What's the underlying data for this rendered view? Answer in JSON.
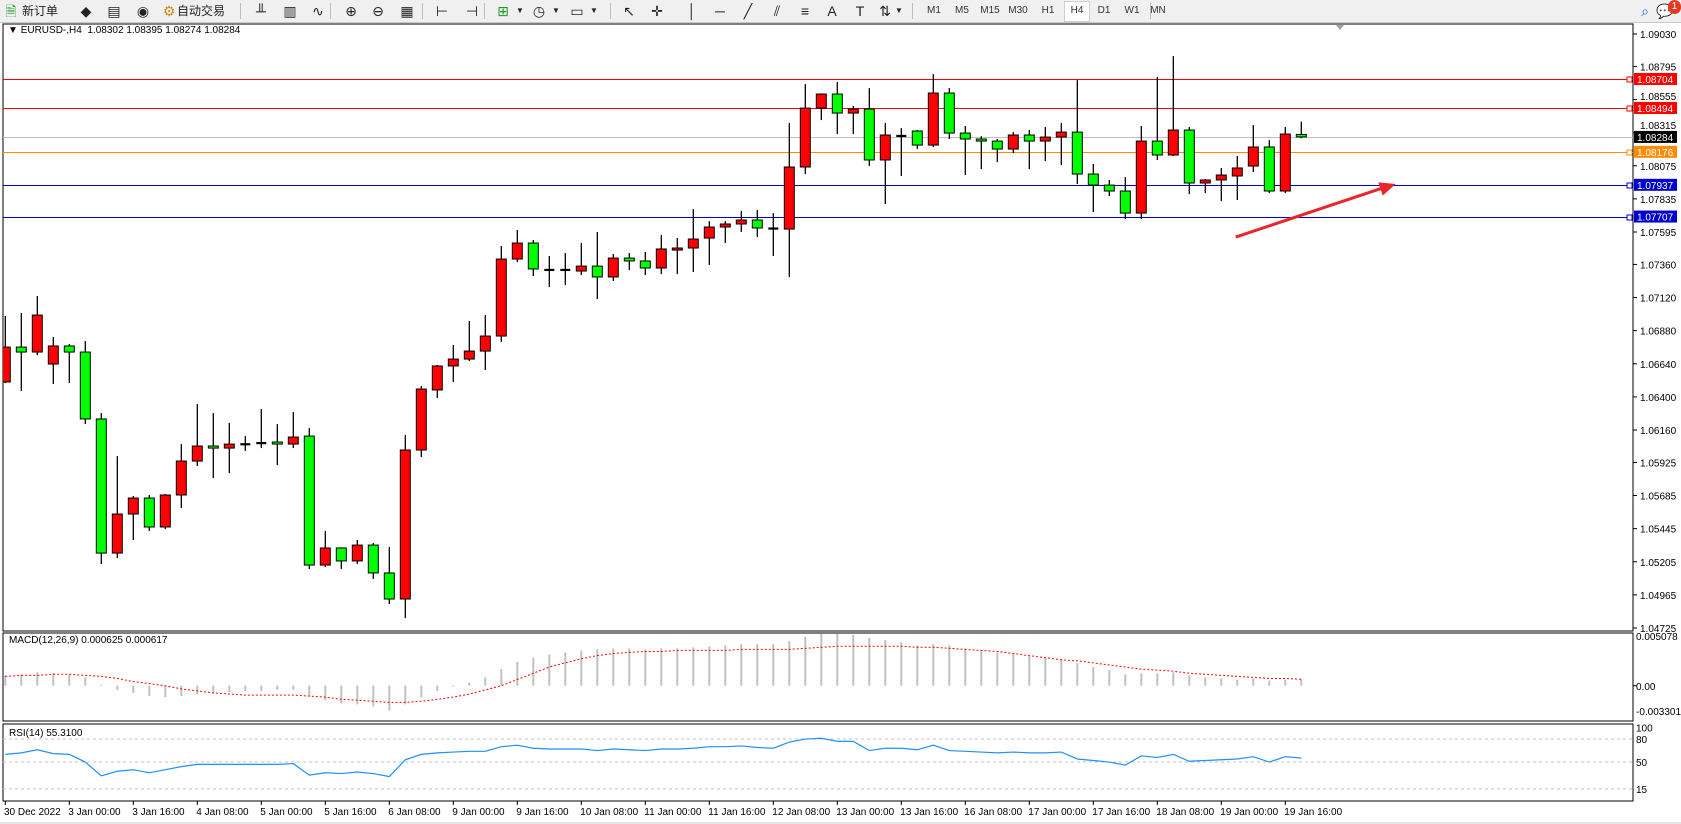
{
  "toolbar": {
    "new_order_label": "新订单",
    "auto_trade_label": "自动交易",
    "timeframes": [
      "M1",
      "M5",
      "M15",
      "M30",
      "H1",
      "H4",
      "D1",
      "W1",
      "MN"
    ],
    "active_timeframe": "H4",
    "notification_count": "1",
    "icons": [
      "new-order-icon",
      "metaeditor-icon",
      "navigator-icon",
      "signals-icon",
      "auto-trading-icon",
      "bar-chart-icon",
      "candlestick-chart-icon",
      "line-chart-icon",
      "zoom-in-icon",
      "zoom-out-icon",
      "tile-windows-icon",
      "autoscroll-icon",
      "chart-shift-icon",
      "indicators-icon",
      "periods-clock-icon",
      "templates-icon",
      "cursor-icon",
      "crosshair-icon",
      "vertical-line-icon",
      "horizontal-line-icon",
      "trendline-icon",
      "equidistant-channel-icon",
      "fibonacci-icon",
      "text-icon",
      "text-label-icon",
      "arrows-icon",
      "search-icon",
      "notification-icon"
    ]
  },
  "chart": {
    "symbol_timeframe": "EURUSD-,H4",
    "header_open": "1.08302",
    "header_high": "1.08395",
    "header_low": "1.08274",
    "header_close": "1.08284",
    "price_axis_labels": [
      "1.09030",
      "1.08795",
      "1.08555",
      "1.08315",
      "1.08075",
      "1.07835",
      "1.07595",
      "1.07360",
      "1.07120",
      "1.06880",
      "1.06640",
      "1.06400",
      "1.06160",
      "1.05925",
      "1.05685",
      "1.05445",
      "1.05205",
      "1.04965",
      "1.04725"
    ],
    "horizontal_lines": [
      {
        "price": "1.08704",
        "color": "#ff0000"
      },
      {
        "price": "1.08494",
        "color": "#ff0000"
      },
      {
        "price": "1.08284",
        "color": "#000000",
        "line_color": "#c0c0c0",
        "kind": "bid"
      },
      {
        "price": "1.08176",
        "color": "#ff8c00"
      },
      {
        "price": "1.07937",
        "color": "#0000cd"
      },
      {
        "price": "1.07707",
        "color": "#0000cd"
      }
    ],
    "time_labels": [
      "30 Dec 2022",
      "3 Jan 00:00",
      "3 Jan 16:00",
      "4 Jan 08:00",
      "5 Jan 00:00",
      "5 Jan 16:00",
      "6 Jan 08:00",
      "9 Jan 00:00",
      "9 Jan 16:00",
      "10 Jan 08:00",
      "11 Jan 00:00",
      "11 Jan 16:00",
      "12 Jan 08:00",
      "13 Jan 00:00",
      "13 Jan 16:00",
      "16 Jan 08:00",
      "17 Jan 00:00",
      "17 Jan 16:00",
      "18 Jan 08:00",
      "19 Jan 00:00",
      "19 Jan 16:00"
    ],
    "colors": {
      "bull": "#ff0000",
      "bear": "#00ff00",
      "outline": "#000000",
      "annotation_arrow": "#e8262b"
    }
  },
  "macd": {
    "label": "MACD(12,26,9) 0.000625 0.000617",
    "axis_labels": [
      "0.005078",
      "0.00",
      "-0.003301"
    ],
    "colors": {
      "histogram": "#c0c0c0",
      "signal": "#ff0000"
    }
  },
  "rsi": {
    "label": "RSI(14) 55.3100",
    "axis_labels": [
      "100",
      "80",
      "50",
      "15"
    ],
    "levels": [
      80,
      50,
      15
    ],
    "colors": {
      "line": "#1e90ff",
      "levels": "#c0c0c0"
    }
  },
  "chart_data": {
    "type": "candlestick",
    "symbol": "EURUSD-",
    "timeframe": "H4",
    "ylim": [
      1.04725,
      1.0903
    ],
    "ohlc": [
      [
        1.06508,
        1.06986,
        1.065,
        1.06761
      ],
      [
        1.06761,
        1.07008,
        1.06442,
        1.06725
      ],
      [
        1.06725,
        1.07131,
        1.06703,
        1.06993
      ],
      [
        1.06638,
        1.06834,
        1.06493,
        1.06769
      ],
      [
        1.06769,
        1.06783,
        1.065,
        1.06725
      ],
      [
        1.06725,
        1.06805,
        1.06203,
        1.0624
      ],
      [
        1.0624,
        1.06283,
        1.05189,
        1.05268
      ],
      [
        1.05268,
        1.05971,
        1.05232,
        1.05551
      ],
      [
        1.05551,
        1.05682,
        1.05363,
        1.05667
      ],
      [
        1.05667,
        1.05689,
        1.05428,
        1.05457
      ],
      [
        1.05457,
        1.05696,
        1.05442,
        1.05689
      ],
      [
        1.05689,
        1.06058,
        1.05595,
        1.05935
      ],
      [
        1.05935,
        1.06348,
        1.05899,
        1.06044
      ],
      [
        1.06044,
        1.06283,
        1.05812,
        1.06029
      ],
      [
        1.06029,
        1.06211,
        1.05848,
        1.06058
      ],
      [
        1.06058,
        1.06116,
        1.06008,
        1.06055
      ],
      [
        1.06066,
        1.06312,
        1.06029,
        1.06064
      ],
      [
        1.06073,
        1.06203,
        1.05906,
        1.06058
      ],
      [
        1.06058,
        1.0629,
        1.06029,
        1.06109
      ],
      [
        1.06116,
        1.06174,
        1.05153,
        1.05181
      ],
      [
        1.05181,
        1.05428,
        1.05167,
        1.05305
      ],
      [
        1.05305,
        1.0531,
        1.05153,
        1.05211
      ],
      [
        1.05211,
        1.05363,
        1.05189,
        1.05326
      ],
      [
        1.05326,
        1.05341,
        1.0508,
        1.05124
      ],
      [
        1.05124,
        1.05312,
        1.04899,
        1.04935
      ],
      [
        1.04935,
        1.06124,
        1.04797,
        1.06015
      ],
      [
        1.06015,
        1.06479,
        1.05964,
        1.06457
      ],
      [
        1.0645,
        1.06631,
        1.06392,
        1.06624
      ],
      [
        1.06624,
        1.06776,
        1.06508,
        1.06674
      ],
      [
        1.06674,
        1.0695,
        1.0666,
        1.06732
      ],
      [
        1.06732,
        1.06993,
        1.06595,
        1.06841
      ],
      [
        1.06841,
        1.07493,
        1.06798,
        1.07399
      ],
      [
        1.07399,
        1.07609,
        1.07377,
        1.07515
      ],
      [
        1.07515,
        1.07537,
        1.07276,
        1.07327
      ],
      [
        1.07319,
        1.07421,
        1.07196,
        1.07321
      ],
      [
        1.07321,
        1.07443,
        1.07211,
        1.07319
      ],
      [
        1.07312,
        1.07515,
        1.07283,
        1.07348
      ],
      [
        1.07348,
        1.07595,
        1.07109,
        1.07269
      ],
      [
        1.07269,
        1.07435,
        1.0724,
        1.07406
      ],
      [
        1.07406,
        1.07443,
        1.07319,
        1.07385
      ],
      [
        1.07385,
        1.0745,
        1.07283,
        1.07334
      ],
      [
        1.07334,
        1.07573,
        1.0729,
        1.07472
      ],
      [
        1.07464,
        1.07551,
        1.0729,
        1.07479
      ],
      [
        1.07479,
        1.07761,
        1.07305,
        1.07544
      ],
      [
        1.07551,
        1.07674,
        1.07356,
        1.07631
      ],
      [
        1.07631,
        1.07674,
        1.07515,
        1.07653
      ],
      [
        1.07653,
        1.07747,
        1.07595,
        1.07682
      ],
      [
        1.07682,
        1.07754,
        1.07559,
        1.07624
      ],
      [
        1.07624,
        1.07732,
        1.07421,
        1.07616
      ],
      [
        1.07616,
        1.08385,
        1.07269,
        1.08066
      ],
      [
        1.08066,
        1.08667,
        1.08015,
        1.08493
      ],
      [
        1.08493,
        1.086,
        1.08406,
        1.08595
      ],
      [
        1.08595,
        1.08682,
        1.08305,
        1.08457
      ],
      [
        1.08457,
        1.08508,
        1.08305,
        1.08486
      ],
      [
        1.08486,
        1.08638,
        1.08073,
        1.08117
      ],
      [
        1.08117,
        1.08385,
        1.07798,
        1.08298
      ],
      [
        1.0829,
        1.08348,
        1.08001,
        1.08292
      ],
      [
        1.08327,
        1.08334,
        1.08196,
        1.08225
      ],
      [
        1.08225,
        1.0874,
        1.08211,
        1.08602
      ],
      [
        1.08602,
        1.08638,
        1.08269,
        1.08312
      ],
      [
        1.08312,
        1.08363,
        1.08008,
        1.08269
      ],
      [
        1.08269,
        1.0829,
        1.08051,
        1.08254
      ],
      [
        1.08254,
        1.08269,
        1.08102,
        1.08196
      ],
      [
        1.08196,
        1.08319,
        1.08167,
        1.08298
      ],
      [
        1.08298,
        1.08334,
        1.08051,
        1.08254
      ],
      [
        1.08254,
        1.08356,
        1.08109,
        1.08283
      ],
      [
        1.08283,
        1.08385,
        1.0808,
        1.08319
      ],
      [
        1.08319,
        1.08696,
        1.07943,
        1.08015
      ],
      [
        1.08015,
        1.08088,
        1.0774,
        1.07935
      ],
      [
        1.07935,
        1.07972,
        1.07856,
        1.07892
      ],
      [
        1.07892,
        1.07993,
        1.07689,
        1.07732
      ],
      [
        1.07732,
        1.08363,
        1.07689,
        1.08254
      ],
      [
        1.08254,
        1.08718,
        1.08117,
        1.08153
      ],
      [
        1.08153,
        1.0887,
        1.08146,
        1.08334
      ],
      [
        1.08334,
        1.08356,
        1.0787,
        1.0795
      ],
      [
        1.0795,
        1.07979,
        1.07877,
        1.07972
      ],
      [
        1.07972,
        1.08059,
        1.07819,
        1.08008
      ],
      [
        1.08001,
        1.08146,
        1.07827,
        1.08059
      ],
      [
        1.08073,
        1.0837,
        1.0803,
        1.08211
      ],
      [
        1.08211,
        1.08261,
        1.07877,
        1.07892
      ],
      [
        1.07892,
        1.08356,
        1.07877,
        1.08305
      ],
      [
        1.08302,
        1.08395,
        1.08274,
        1.08284
      ]
    ],
    "macd_main": [
      0.001,
      0.0011,
      0.0013,
      0.0012,
      0.0011,
      0.0008,
      0.0001,
      -0.0004,
      -0.0007,
      -0.001,
      -0.0011,
      -0.001,
      -0.0008,
      -0.0007,
      -0.0006,
      -0.0005,
      -0.0005,
      -0.0004,
      -0.0004,
      -0.001,
      -0.0014,
      -0.0017,
      -0.0018,
      -0.002,
      -0.0024,
      -0.0018,
      -0.0011,
      -0.0005,
      -0.0001,
      0.0003,
      0.0008,
      0.0016,
      0.0023,
      0.0027,
      0.003,
      0.0032,
      0.0034,
      0.0035,
      0.0036,
      0.0036,
      0.0035,
      0.0036,
      0.0036,
      0.0037,
      0.0038,
      0.0039,
      0.004,
      0.004,
      0.004,
      0.0043,
      0.0047,
      0.005,
      0.005,
      0.0049,
      0.0046,
      0.0044,
      0.0042,
      0.0039,
      0.004,
      0.0039,
      0.0036,
      0.0034,
      0.0032,
      0.0031,
      0.0029,
      0.0027,
      0.0026,
      0.0022,
      0.0018,
      0.0015,
      0.0011,
      0.0012,
      0.0012,
      0.0013,
      0.001,
      0.0008,
      0.0007,
      0.0006,
      0.0007,
      0.0005,
      0.0006,
      0.000625
    ],
    "macd_signal": [
      0.0009,
      0.001,
      0.001,
      0.0011,
      0.0011,
      0.001,
      0.0009,
      0.0007,
      0.0004,
      0.0002,
      0.0,
      -0.0003,
      -0.0005,
      -0.0007,
      -0.0008,
      -0.0009,
      -0.0009,
      -0.0009,
      -0.0009,
      -0.001,
      -0.0011,
      -0.0013,
      -0.0014,
      -0.0015,
      -0.0016,
      -0.0016,
      -0.0015,
      -0.0013,
      -0.0011,
      -0.0008,
      -0.0004,
      0.0,
      0.0006,
      0.0012,
      0.0018,
      0.0022,
      0.0026,
      0.0029,
      0.0031,
      0.0032,
      0.0033,
      0.0033,
      0.0034,
      0.0034,
      0.0034,
      0.0034,
      0.0035,
      0.0035,
      0.0035,
      0.0035,
      0.0036,
      0.0037,
      0.0038,
      0.0038,
      0.0038,
      0.0038,
      0.0038,
      0.0037,
      0.0037,
      0.0036,
      0.0035,
      0.0034,
      0.0033,
      0.0031,
      0.0029,
      0.0027,
      0.0025,
      0.0024,
      0.0022,
      0.002,
      0.0018,
      0.0016,
      0.0015,
      0.0014,
      0.0012,
      0.0011,
      0.001,
      0.0009,
      0.0008,
      0.0007,
      0.0007,
      0.000617
    ],
    "macd_ylim": [
      -0.003301,
      0.005078
    ],
    "rsi": [
      60,
      62,
      66,
      61,
      60,
      50,
      32,
      38,
      40,
      36,
      40,
      44,
      47,
      47,
      47,
      47,
      47,
      47,
      48,
      33,
      36,
      35,
      37,
      35,
      31,
      53,
      60,
      62,
      63,
      64,
      64,
      70,
      72,
      68,
      67,
      67,
      67,
      65,
      67,
      66,
      65,
      67,
      67,
      68,
      70,
      70,
      71,
      69,
      68,
      76,
      80,
      81,
      77,
      77,
      65,
      68,
      68,
      66,
      72,
      65,
      64,
      63,
      62,
      63,
      62,
      62,
      63,
      54,
      52,
      50,
      46,
      58,
      56,
      60,
      51,
      52,
      53,
      54,
      57,
      50,
      57,
      55.31
    ],
    "rsi_ylim": [
      0,
      100
    ]
  }
}
